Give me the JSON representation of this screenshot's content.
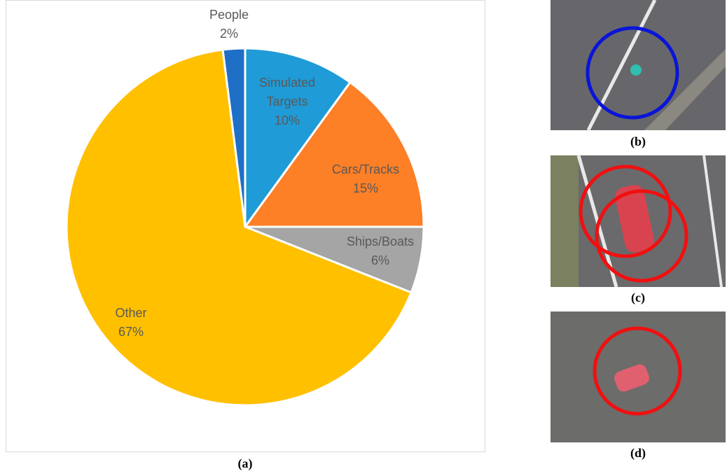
{
  "chart_data": {
    "type": "pie",
    "categories": [
      "Simulated Targets",
      "Cars/Tracks",
      "Ships/Boats",
      "Other",
      "People"
    ],
    "values": [
      10,
      15,
      6,
      67,
      2
    ],
    "value_labels": [
      "10%",
      "15%",
      "6%",
      "67%",
      "2%"
    ],
    "colors": [
      "#1f9bd7",
      "#fd7f26",
      "#a5a5a5",
      "#ffc000",
      "#1f6fc6"
    ],
    "caption": "(a)"
  },
  "panels": [
    {
      "caption": "(b)"
    },
    {
      "caption": "(c)"
    },
    {
      "caption": "(d)"
    }
  ]
}
